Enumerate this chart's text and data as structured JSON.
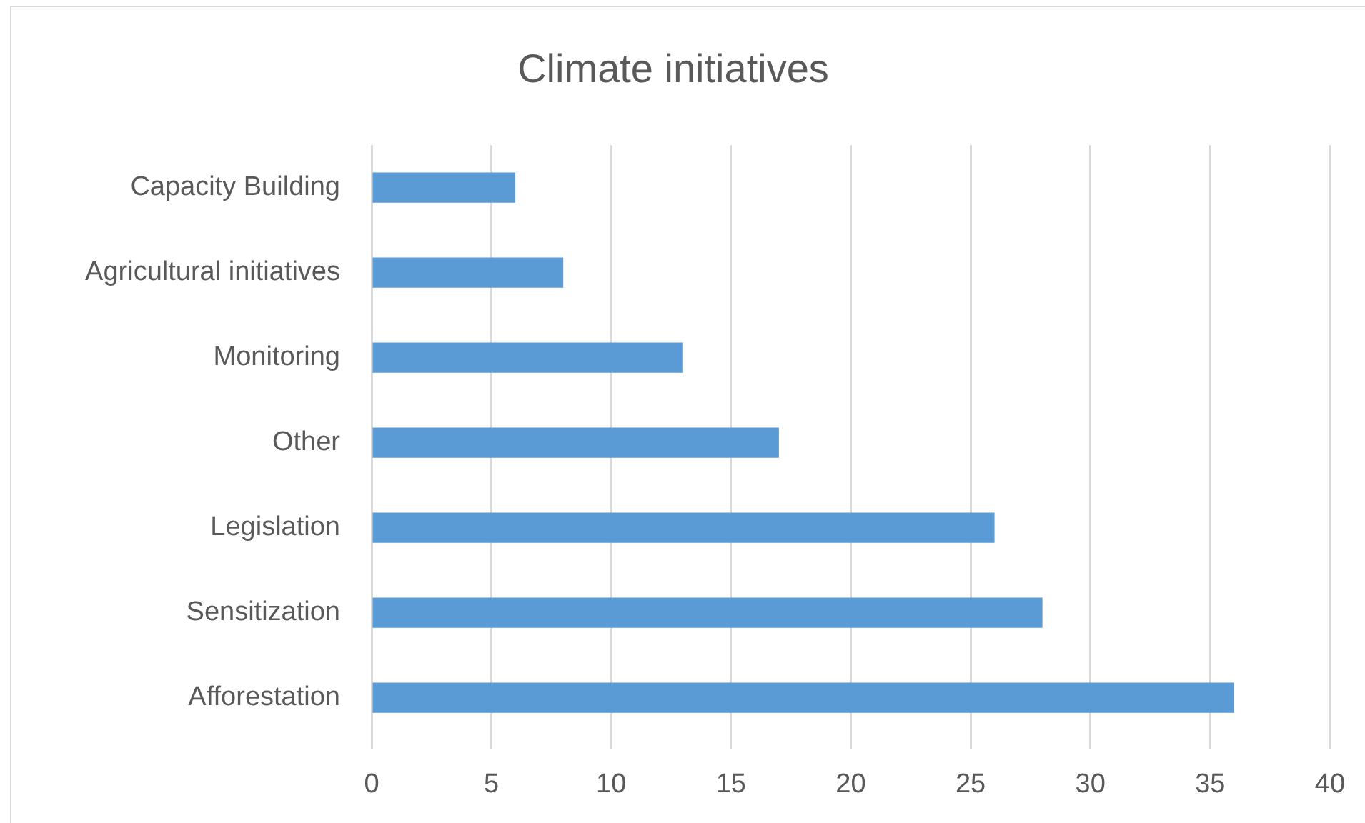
{
  "chart_data": {
    "type": "bar",
    "title": "Climate initiatives",
    "orientation": "horizontal",
    "categories": [
      "Capacity Building",
      "Agricultural initiatives",
      "Monitoring",
      "Other",
      "Legislation",
      "Sensitization",
      "Afforestation"
    ],
    "values": [
      6,
      8,
      13,
      17,
      26,
      28,
      36
    ],
    "color": "#5b9bd5",
    "xlim": [
      0,
      40
    ],
    "xticks": [
      0,
      5,
      10,
      15,
      20,
      25,
      30,
      35,
      40
    ],
    "grid": "x"
  }
}
